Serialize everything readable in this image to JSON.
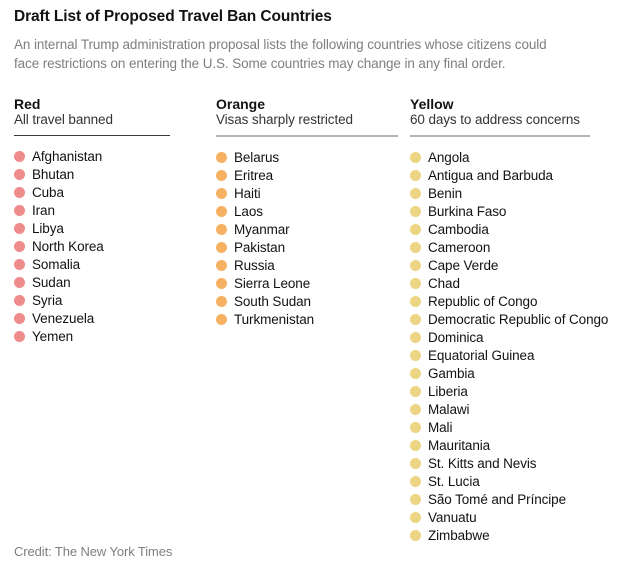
{
  "title": "Draft List of Proposed Travel Ban Countries",
  "subtitle_lines": [
    "An internal Trump administration proposal lists the following countries whose citizens could",
    "face restrictions on entering the U.S. Some countries may change in any final order."
  ],
  "credit": "Credit: The New York Times",
  "colors": {
    "red_dot": "#ee8b8b",
    "orange_dot": "#f6b163",
    "yellow_dot": "#ecd583",
    "rule_dark": "#3a3a3a",
    "rule_gray": "#b5b5b5",
    "muted_text": "#7f7f7f"
  },
  "columns": [
    {
      "key": "red",
      "label": "Red",
      "description": "All travel banned",
      "dot_color": "#ee8b8b",
      "countries": [
        "Afghanistan",
        "Bhutan",
        "Cuba",
        "Iran",
        "Libya",
        "North Korea",
        "Somalia",
        "Sudan",
        "Syria",
        "Venezuela",
        "Yemen"
      ]
    },
    {
      "key": "orange",
      "label": "Orange",
      "description": "Visas sharply restricted",
      "dot_color": "#f6b163",
      "countries": [
        "Belarus",
        "Eritrea",
        "Haiti",
        "Laos",
        "Myanmar",
        "Pakistan",
        "Russia",
        "Sierra Leone",
        "South Sudan",
        "Turkmenistan"
      ]
    },
    {
      "key": "yellow",
      "label": "Yellow",
      "description": "60 days to address concerns",
      "dot_color": "#ecd583",
      "countries": [
        "Angola",
        "Antigua and Barbuda",
        "Benin",
        "Burkina Faso",
        "Cambodia",
        "Cameroon",
        "Cape Verde",
        "Chad",
        "Republic of Congo",
        "Democratic Republic of Congo",
        "Dominica",
        "Equatorial Guinea",
        "Gambia",
        "Liberia",
        "Malawi",
        "Mali",
        "Mauritania",
        "St. Kitts and Nevis",
        "St. Lucia",
        "São Tomé and Príncipe",
        "Vanuatu",
        "Zimbabwe"
      ]
    }
  ],
  "chart_data": {
    "type": "table",
    "title": "Draft List of Proposed Travel Ban Countries",
    "subtitle": "An internal Trump administration proposal lists the following countries whose citizens could face restrictions on entering the U.S. Some countries may change in any final order.",
    "legend_position": "columns",
    "categories": [
      "Red — All travel banned",
      "Orange — Visas sharply restricted",
      "Yellow — 60 days to address concerns"
    ],
    "series": [
      {
        "name": "Red",
        "restriction": "All travel banned",
        "count": 11,
        "values": [
          "Afghanistan",
          "Bhutan",
          "Cuba",
          "Iran",
          "Libya",
          "North Korea",
          "Somalia",
          "Sudan",
          "Syria",
          "Venezuela",
          "Yemen"
        ]
      },
      {
        "name": "Orange",
        "restriction": "Visas sharply restricted",
        "count": 10,
        "values": [
          "Belarus",
          "Eritrea",
          "Haiti",
          "Laos",
          "Myanmar",
          "Pakistan",
          "Russia",
          "Sierra Leone",
          "South Sudan",
          "Turkmenistan"
        ]
      },
      {
        "name": "Yellow",
        "restriction": "60 days to address concerns",
        "count": 22,
        "values": [
          "Angola",
          "Antigua and Barbuda",
          "Benin",
          "Burkina Faso",
          "Cambodia",
          "Cameroon",
          "Cape Verde",
          "Chad",
          "Republic of Congo",
          "Democratic Republic of Congo",
          "Dominica",
          "Equatorial Guinea",
          "Gambia",
          "Liberia",
          "Malawi",
          "Mali",
          "Mauritania",
          "St. Kitts and Nevis",
          "St. Lucia",
          "São Tomé and Príncipe",
          "Vanuatu",
          "Zimbabwe"
        ]
      }
    ],
    "annotations": [
      "Credit: The New York Times"
    ]
  }
}
